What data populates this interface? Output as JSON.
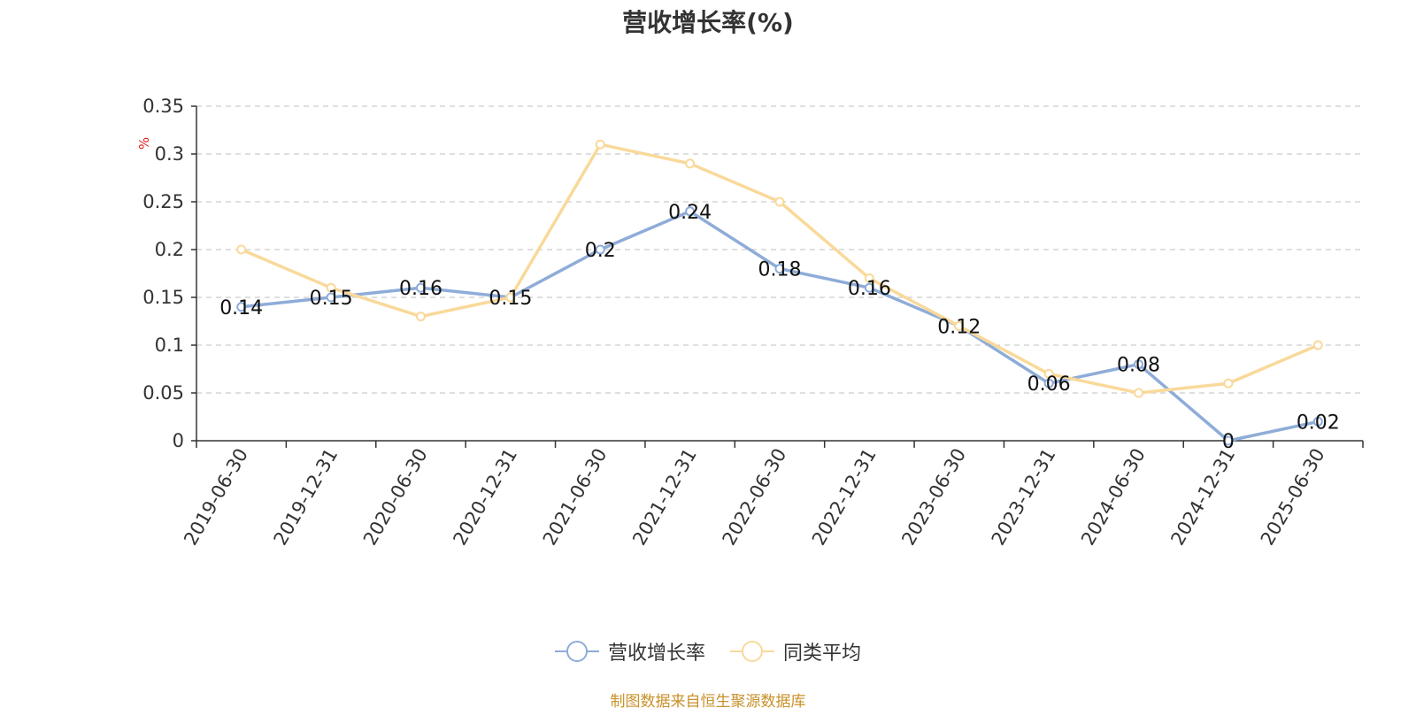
{
  "chart_data": {
    "type": "line",
    "title": "营收增长率(%)",
    "ylabel": "%",
    "xlabel": "",
    "categories": [
      "2019-06-30",
      "2019-12-31",
      "2020-06-30",
      "2020-12-31",
      "2021-06-30",
      "2021-12-31",
      "2022-06-30",
      "2022-12-31",
      "2023-06-30",
      "2023-12-31",
      "2024-06-30",
      "2024-12-31",
      "2025-06-30"
    ],
    "series": [
      {
        "name": "营收增长率",
        "color": "#8eacd8",
        "values": [
          0.14,
          0.15,
          0.16,
          0.15,
          0.2,
          0.24,
          0.18,
          0.16,
          0.12,
          0.06,
          0.08,
          0,
          0.02
        ],
        "show_labels": true
      },
      {
        "name": "同类平均",
        "color": "#f9d99a",
        "values": [
          0.2,
          0.16,
          0.13,
          0.15,
          0.31,
          0.29,
          0.25,
          0.17,
          0.12,
          0.07,
          0.05,
          0.06,
          0.1
        ],
        "show_labels": false
      }
    ],
    "yticks": [
      "0",
      "0.05",
      "0.1",
      "0.15",
      "0.2",
      "0.25",
      "0.3",
      "0.35"
    ],
    "ylim": [
      0,
      0.35
    ],
    "grid": true,
    "grid_style": "dashed",
    "legend_position": "bottom-center",
    "x_tick_rotation": "-60deg"
  },
  "source_note": "制图数据来自恒生聚源数据库"
}
